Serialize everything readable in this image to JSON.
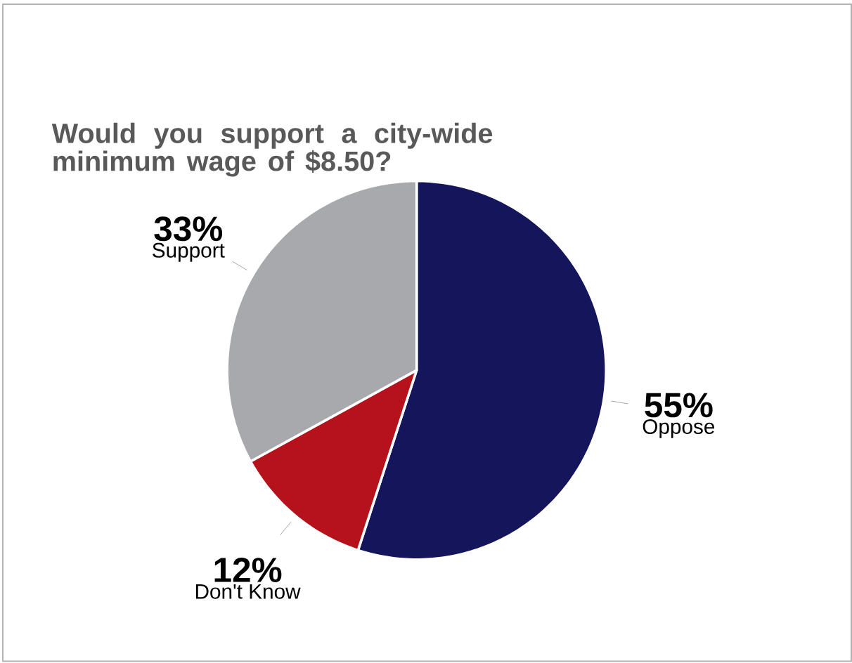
{
  "chart_data": {
    "type": "pie",
    "title": "Would you support a city-wide minimum wage of $8.50?",
    "categories": [
      "Oppose",
      "Don't Know",
      "Support"
    ],
    "values": [
      55,
      12,
      33
    ],
    "colors": [
      "#14155a",
      "#b5121b",
      "#a7a9ac"
    ],
    "value_labels": [
      "55%",
      "12%",
      "33%"
    ]
  }
}
